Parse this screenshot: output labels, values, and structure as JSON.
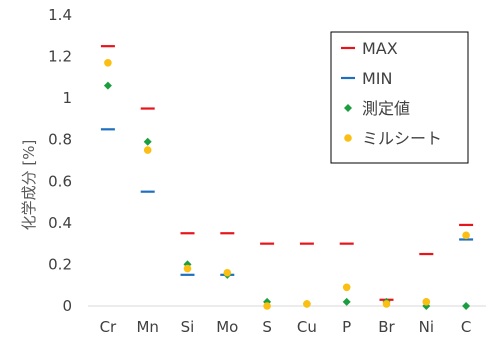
{
  "chart_data": {
    "type": "scatter",
    "title": "",
    "xlabel": "",
    "ylabel": "化学成分 [%]",
    "ylim": [
      0,
      1.4
    ],
    "ytick_values": [
      0,
      0.2,
      0.4,
      0.6,
      0.8,
      1,
      1.2,
      1.4
    ],
    "ytick_labels": [
      "0",
      "0.2",
      "0.4",
      "0.6",
      "0.8",
      "1",
      "1.2",
      "1.4"
    ],
    "categories": [
      "Cr",
      "Mn",
      "Si",
      "Mo",
      "S",
      "Cu",
      "P",
      "Br",
      "Ni",
      "C"
    ],
    "grid": false,
    "legend_position": "top-right",
    "series": [
      {
        "name": "MAX",
        "marker": "dash",
        "color": "#e8141b",
        "values": [
          1.25,
          0.95,
          0.35,
          0.35,
          0.3,
          0.3,
          0.3,
          0.03,
          0.25,
          0.39
        ]
      },
      {
        "name": "MIN",
        "marker": "dash",
        "color": "#1f6fbf",
        "values": [
          0.85,
          0.55,
          0.15,
          0.15,
          null,
          null,
          null,
          null,
          null,
          0.32
        ]
      },
      {
        "name": "測定値",
        "marker": "diamond",
        "color": "#1b9e3e",
        "values": [
          1.06,
          0.79,
          0.2,
          0.15,
          0.02,
          0.01,
          0.02,
          0.02,
          0.0,
          0.0
        ]
      },
      {
        "name": "ミルシート",
        "marker": "circle",
        "color": "#fbbf13",
        "values": [
          1.17,
          0.75,
          0.18,
          0.16,
          0.0,
          0.01,
          0.09,
          0.01,
          0.02,
          0.34
        ]
      }
    ]
  }
}
